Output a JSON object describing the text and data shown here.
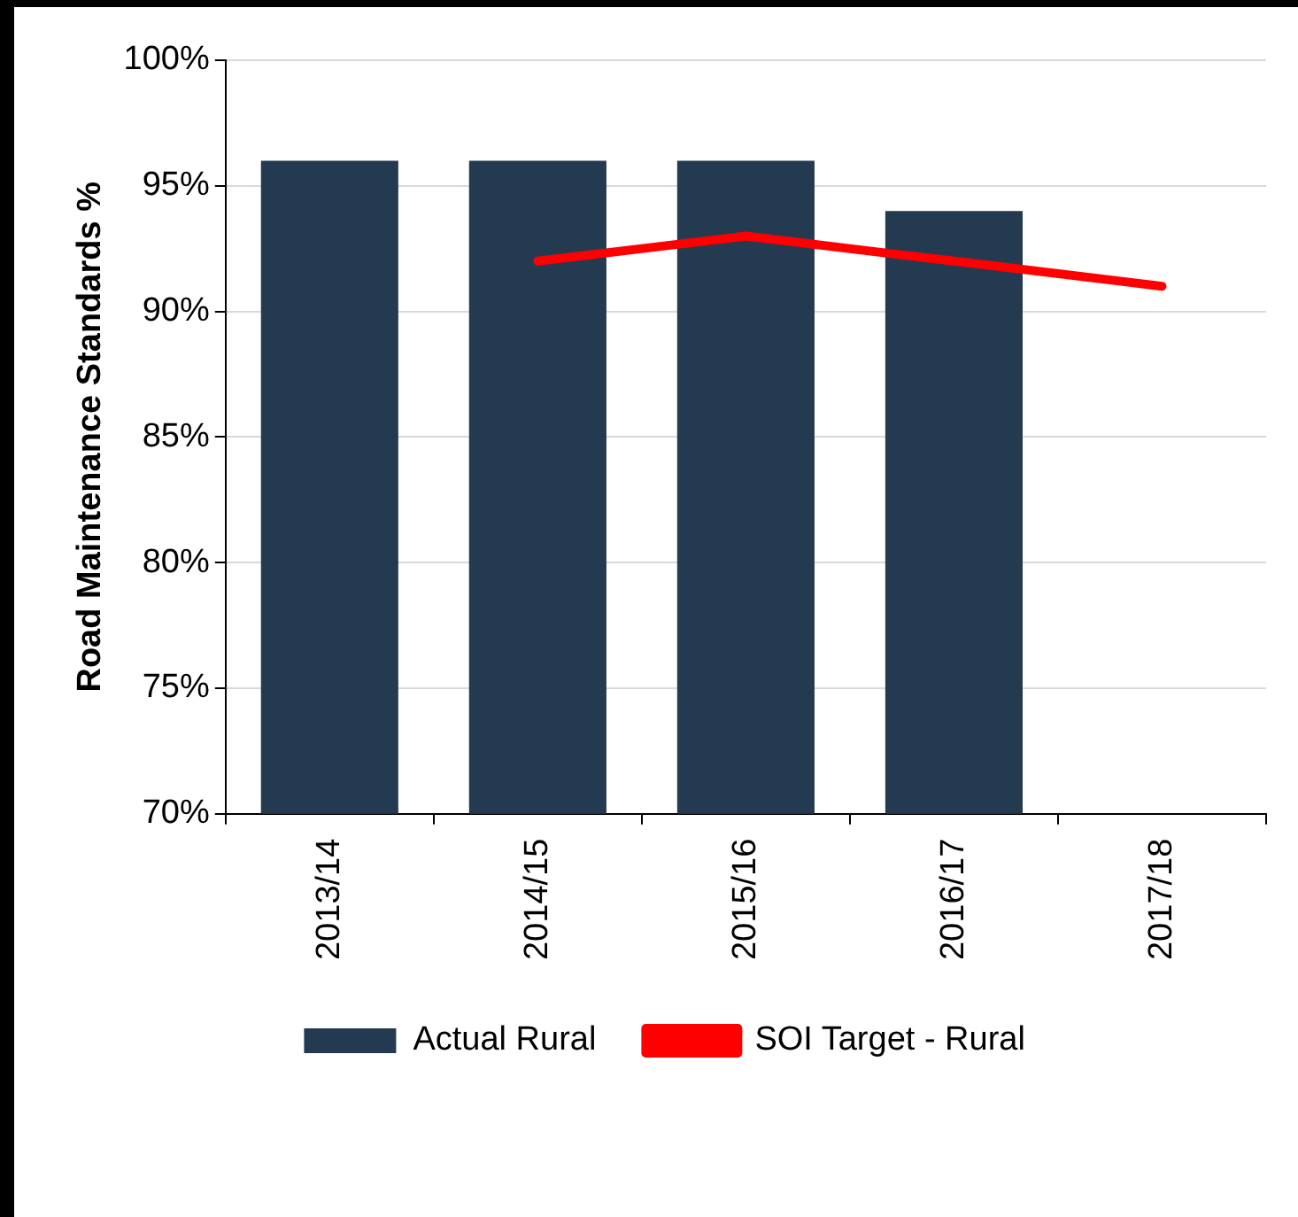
{
  "chart_data": {
    "type": "bar",
    "ylabel": "Road Maintenance Standards %",
    "categories": [
      "2013/14",
      "2014/15",
      "2015/16",
      "2016/17",
      "2017/18"
    ],
    "series": [
      {
        "name": "Actual Rural",
        "color": "#243a51",
        "values": [
          96,
          96,
          96,
          94,
          null
        ]
      },
      {
        "name": "SOI Target - Rural",
        "type": "line",
        "color": "#ff0000",
        "values": [
          null,
          92,
          93,
          92,
          91
        ]
      }
    ],
    "ylim": [
      70,
      100
    ],
    "yticks": [
      {
        "value": 70,
        "label": "70%"
      },
      {
        "value": 75,
        "label": "75%"
      },
      {
        "value": 80,
        "label": "80%"
      },
      {
        "value": 85,
        "label": "85%"
      },
      {
        "value": 90,
        "label": "90%"
      },
      {
        "value": 95,
        "label": "95%"
      },
      {
        "value": 100,
        "label": "100%"
      }
    ],
    "grid": "y",
    "legend": "bottom",
    "marker": "none",
    "line_style": "solid"
  }
}
